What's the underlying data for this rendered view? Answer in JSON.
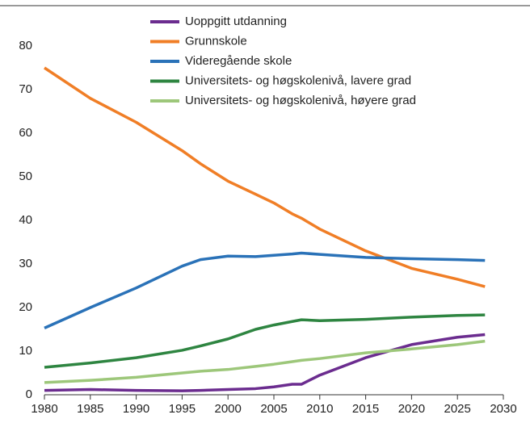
{
  "chart_data": {
    "type": "line",
    "x": [
      1980,
      1985,
      1990,
      1995,
      1997,
      2000,
      2003,
      2005,
      2007,
      2008,
      2010,
      2015,
      2020,
      2025,
      2028
    ],
    "series": [
      {
        "name": "Uoppgitt utdanning",
        "color": "#6b2c8f",
        "values": [
          1,
          1.2,
          1,
          0.9,
          1,
          1.2,
          1.4,
          1.8,
          2.4,
          2.4,
          4.5,
          8.5,
          11.5,
          13.2,
          13.8
        ]
      },
      {
        "name": "Grunnskole",
        "color": "#f07e26",
        "values": [
          75,
          68,
          62.5,
          56,
          53,
          49,
          46,
          44,
          41.5,
          40.5,
          38,
          33,
          29,
          26.5,
          24.8
        ]
      },
      {
        "name": "Videregående skole",
        "color": "#2a72b8",
        "values": [
          15.3,
          20,
          24.5,
          29.5,
          31,
          31.8,
          31.7,
          32,
          32.3,
          32.5,
          32.2,
          31.5,
          31.2,
          31,
          30.8
        ]
      },
      {
        "name": "Universitets- og høgskolenivå, lavere grad",
        "color": "#2e8541",
        "values": [
          6.3,
          7.3,
          8.5,
          10.2,
          11.2,
          12.8,
          15,
          16,
          16.8,
          17.2,
          17,
          17.3,
          17.8,
          18.2,
          18.3
        ]
      },
      {
        "name": "Universitets- og høgskolenivå, høyere grad",
        "color": "#9dc77a",
        "values": [
          2.8,
          3.3,
          4,
          5,
          5.4,
          5.8,
          6.5,
          7,
          7.6,
          7.9,
          8.3,
          9.6,
          10.5,
          11.5,
          12.3
        ]
      }
    ],
    "xlim": [
      1980,
      2030
    ],
    "xticks": [
      1980,
      1985,
      1990,
      1995,
      2000,
      2005,
      2010,
      2015,
      2020,
      2025,
      2030
    ],
    "ylim": [
      0,
      80
    ],
    "yticks": [
      0,
      10,
      20,
      30,
      40,
      50,
      60,
      70,
      80
    ],
    "grid": false
  }
}
